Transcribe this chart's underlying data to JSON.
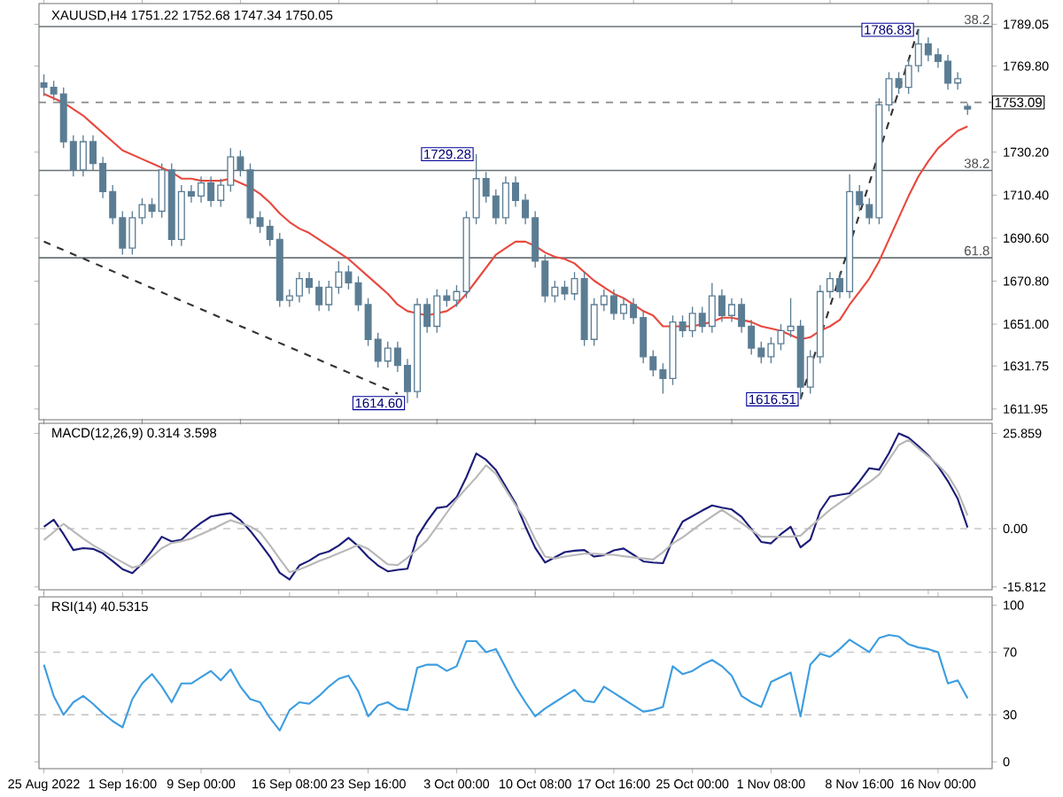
{
  "chart_data": [
    {
      "type": "candlestick",
      "title": "XAUUSD,H4  1751.22 1752.68 1747.34 1750.05",
      "color": "#5b7d94",
      "categories": [
        null,
        null,
        null,
        null,
        null,
        null,
        null,
        null,
        null,
        null,
        null,
        null,
        null,
        null,
        null,
        null,
        null,
        null,
        null,
        null,
        null,
        null,
        null,
        null,
        null,
        null,
        null,
        null,
        null,
        null,
        null,
        null,
        null,
        null,
        null,
        null,
        null,
        null,
        null,
        null,
        null,
        null,
        null,
        null,
        null,
        null,
        null,
        null,
        null,
        null,
        null,
        null,
        null,
        null,
        null,
        null,
        null,
        null,
        null,
        null,
        null,
        null,
        null,
        null,
        null,
        null,
        null,
        null,
        null,
        null,
        null,
        null,
        null,
        null,
        null,
        null,
        null,
        null,
        null,
        null,
        null,
        null,
        null,
        null,
        null,
        null,
        null,
        null,
        null,
        null,
        null,
        null,
        null,
        null,
        null
      ],
      "ohlc": [
        [
          1762,
          1766,
          1756,
          1760
        ],
        [
          1760,
          1763,
          1754,
          1757
        ],
        [
          1757,
          1760,
          1732,
          1735
        ],
        [
          1735,
          1738,
          1719,
          1722
        ],
        [
          1722,
          1738,
          1719,
          1735
        ],
        [
          1735,
          1738,
          1722,
          1725
        ],
        [
          1725,
          1728,
          1709,
          1712
        ],
        [
          1712,
          1715,
          1697,
          1700
        ],
        [
          1700,
          1703,
          1683,
          1686
        ],
        [
          1686,
          1703,
          1683,
          1700
        ],
        [
          1700,
          1709,
          1697,
          1706
        ],
        [
          1706,
          1709,
          1700,
          1703
        ],
        [
          1703,
          1725,
          1700,
          1722
        ],
        [
          1722,
          1725,
          1687,
          1690
        ],
        [
          1690,
          1715,
          1687,
          1712
        ],
        [
          1712,
          1715,
          1707,
          1710
        ],
        [
          1710,
          1719,
          1707,
          1716
        ],
        [
          1716,
          1719,
          1705,
          1708
        ],
        [
          1708,
          1718,
          1705,
          1715
        ],
        [
          1715,
          1732,
          1712,
          1728
        ],
        [
          1728,
          1731,
          1719,
          1722
        ],
        [
          1722,
          1725,
          1697,
          1700
        ],
        [
          1700,
          1703,
          1693,
          1696
        ],
        [
          1696,
          1699,
          1687,
          1690
        ],
        [
          1690,
          1693,
          1659,
          1662
        ],
        [
          1662,
          1667,
          1659,
          1664
        ],
        [
          1664,
          1675,
          1661,
          1672
        ],
        [
          1672,
          1675,
          1665,
          1668
        ],
        [
          1668,
          1671,
          1657,
          1660
        ],
        [
          1660,
          1671,
          1657,
          1668
        ],
        [
          1668,
          1680,
          1665,
          1675
        ],
        [
          1675,
          1678,
          1667,
          1670
        ],
        [
          1670,
          1673,
          1657,
          1660
        ],
        [
          1660,
          1663,
          1641,
          1644
        ],
        [
          1644,
          1647,
          1631,
          1634
        ],
        [
          1634,
          1643,
          1631,
          1640
        ],
        [
          1640,
          1643,
          1629,
          1632
        ],
        [
          1632,
          1635,
          1614.6,
          1620
        ],
        [
          1620,
          1663,
          1617,
          1660
        ],
        [
          1660,
          1663,
          1647,
          1650
        ],
        [
          1650,
          1667,
          1647,
          1664
        ],
        [
          1664,
          1667,
          1659,
          1662
        ],
        [
          1662,
          1669,
          1659,
          1666
        ],
        [
          1666,
          1703,
          1663,
          1700
        ],
        [
          1700,
          1729.28,
          1697,
          1718
        ],
        [
          1718,
          1721,
          1707,
          1710
        ],
        [
          1710,
          1713,
          1697,
          1700
        ],
        [
          1700,
          1719,
          1697,
          1716
        ],
        [
          1716,
          1719,
          1705,
          1708
        ],
        [
          1708,
          1711,
          1697,
          1700
        ],
        [
          1700,
          1703,
          1677,
          1680
        ],
        [
          1680,
          1683,
          1661,
          1664
        ],
        [
          1664,
          1671,
          1661,
          1668
        ],
        [
          1668,
          1671,
          1662,
          1665
        ],
        [
          1665,
          1675,
          1662,
          1672
        ],
        [
          1672,
          1675,
          1641,
          1644
        ],
        [
          1644,
          1663,
          1641,
          1660
        ],
        [
          1660,
          1667,
          1657,
          1664
        ],
        [
          1664,
          1667,
          1653,
          1656
        ],
        [
          1656,
          1663,
          1653,
          1660
        ],
        [
          1660,
          1663,
          1651,
          1654
        ],
        [
          1654,
          1657,
          1633,
          1636
        ],
        [
          1636,
          1639,
          1627,
          1630
        ],
        [
          1630,
          1633,
          1619,
          1626
        ],
        [
          1626,
          1655,
          1623,
          1652
        ],
        [
          1652,
          1655,
          1645,
          1648
        ],
        [
          1648,
          1659,
          1645,
          1656
        ],
        [
          1656,
          1659,
          1647,
          1650
        ],
        [
          1650,
          1670,
          1647,
          1664
        ],
        [
          1664,
          1667,
          1652,
          1655
        ],
        [
          1655,
          1663,
          1652,
          1660
        ],
        [
          1660,
          1663,
          1647,
          1650
        ],
        [
          1650,
          1653,
          1637,
          1640
        ],
        [
          1640,
          1643,
          1633,
          1636
        ],
        [
          1636,
          1645,
          1633,
          1642
        ],
        [
          1642,
          1651,
          1639,
          1648
        ],
        [
          1648,
          1663,
          1645,
          1650
        ],
        [
          1650,
          1653,
          1616.51,
          1622
        ],
        [
          1622,
          1639,
          1619,
          1636
        ],
        [
          1636,
          1669,
          1633,
          1666
        ],
        [
          1666,
          1675,
          1663,
          1672
        ],
        [
          1672,
          1675,
          1663,
          1666
        ],
        [
          1666,
          1720,
          1663,
          1712
        ],
        [
          1712,
          1715,
          1703,
          1706
        ],
        [
          1706,
          1709,
          1697,
          1700
        ],
        [
          1700,
          1755,
          1697,
          1752
        ],
        [
          1752,
          1767,
          1749,
          1764
        ],
        [
          1764,
          1767,
          1757,
          1760
        ],
        [
          1760,
          1773,
          1757,
          1770
        ],
        [
          1770,
          1786.83,
          1767,
          1780
        ],
        [
          1780,
          1783,
          1772,
          1775
        ],
        [
          1775,
          1778,
          1769,
          1772
        ],
        [
          1772,
          1775,
          1759,
          1762
        ],
        [
          1762,
          1767,
          1759,
          1764
        ],
        [
          1751.22,
          1752.68,
          1747.34,
          1750.05
        ]
      ],
      "series": [
        {
          "type": "line",
          "color": "#e8493e",
          "values": [
            1757,
            1755,
            1753,
            1750,
            1747,
            1743,
            1739,
            1735,
            1731,
            1729,
            1727,
            1725,
            1723,
            1721,
            1718,
            1718,
            1717,
            1717,
            1717,
            1718,
            1716,
            1714,
            1711,
            1707,
            1702,
            1698,
            1695,
            1693,
            1690,
            1687,
            1684,
            1681,
            1677,
            1673,
            1669,
            1665,
            1660,
            1657,
            1656,
            1655,
            1656,
            1657,
            1660,
            1665,
            1671,
            1677,
            1683,
            1686,
            1689,
            1689,
            1687,
            1684,
            1682,
            1681,
            1679,
            1675,
            1671,
            1668,
            1665,
            1663,
            1660,
            1657,
            1655,
            1650,
            1650,
            1650,
            1650,
            1651,
            1652,
            1654,
            1654,
            1653,
            1652,
            1650,
            1649,
            1648,
            1646,
            1644,
            1645,
            1648,
            1650,
            1653,
            1660,
            1666,
            1672,
            1680,
            1690,
            1700,
            1710,
            1719,
            1726,
            1732,
            1736,
            1740,
            1742
          ]
        },
        {
          "type": "line",
          "color": "#333333",
          "line_style": "dashed",
          "values": [
            1689,
            null,
            null,
            null,
            null,
            null,
            null,
            null,
            null,
            null,
            null,
            null,
            null,
            null,
            null,
            null,
            null,
            null,
            null,
            null,
            null,
            null,
            null,
            null,
            null,
            null,
            null,
            null,
            null,
            null,
            null,
            null,
            null,
            null,
            null,
            null,
            1619,
            null,
            null,
            null,
            null,
            null,
            null,
            null,
            null,
            null,
            null,
            null,
            null,
            null,
            null,
            null,
            null,
            null,
            null,
            null,
            null,
            null,
            null,
            null,
            null,
            null,
            null,
            null,
            null,
            null,
            null,
            null,
            null,
            null,
            null,
            null,
            null,
            null,
            null,
            null,
            null,
            null,
            null,
            null,
            null,
            null,
            null,
            null,
            null,
            null,
            null,
            null,
            null,
            null,
            null,
            null,
            null,
            null,
            null
          ]
        },
        {
          "type": "line",
          "color": "#333333",
          "line_style": "dashed",
          "values": [
            null,
            null,
            null,
            null,
            null,
            null,
            null,
            null,
            null,
            null,
            null,
            null,
            null,
            null,
            null,
            null,
            null,
            null,
            null,
            null,
            null,
            null,
            null,
            null,
            null,
            null,
            null,
            null,
            null,
            null,
            null,
            null,
            null,
            null,
            null,
            null,
            null,
            null,
            null,
            null,
            null,
            null,
            null,
            null,
            null,
            null,
            null,
            null,
            null,
            null,
            null,
            null,
            null,
            null,
            null,
            null,
            null,
            null,
            null,
            null,
            null,
            null,
            null,
            null,
            null,
            null,
            null,
            null,
            null,
            null,
            null,
            null,
            null,
            null,
            null,
            null,
            null,
            1616.51,
            null,
            null,
            null,
            null,
            null,
            null,
            null,
            null,
            null,
            null,
            null,
            1786.83,
            null,
            null,
            null,
            null,
            null
          ]
        }
      ],
      "ylim": [
        1607,
        1798.6
      ],
      "yticks": [
        1789.05,
        {
          "value": 1769.8,
          "label": "1769.80"
        },
        {
          "value": 1730.2,
          "label": "1730.20"
        },
        {
          "value": 1710.4,
          "label": "1710.40"
        },
        {
          "value": 1690.6,
          "label": "1690.60"
        },
        {
          "value": 1670.8,
          "label": "1670.80"
        },
        {
          "value": 1651,
          "label": "1651.00"
        },
        1631.75,
        1611.95
      ],
      "tick_labels": "y",
      "ref_lines": [
        {
          "axis": "y",
          "value": 1753.09,
          "label": "1753.09",
          "line_style": "dashed",
          "color": "#888888"
        },
        {
          "axis": "y",
          "value": 1788,
          "color": "#6a7378"
        },
        {
          "axis": "y",
          "value": 1721.77,
          "color": "#6a7378"
        },
        {
          "axis": "y",
          "value": 1681.57,
          "color": "#6a7378"
        }
      ],
      "annotations": [
        "1614.60",
        "1729.28",
        "1616.51",
        "1786.83",
        {
          "text": "38.2",
          "y": 1788
        },
        {
          "text": "38.2",
          "y": 1721.77
        },
        {
          "text": "61.8",
          "y": 1681.57
        }
      ]
    },
    {
      "type": "line",
      "title": "MACD(12,26,9) 0.314 3.598",
      "categories": [
        null,
        null,
        null,
        null,
        null,
        null,
        null,
        null,
        null,
        null,
        null,
        null,
        null,
        null,
        null,
        null,
        null,
        null,
        null,
        null,
        null,
        null,
        null,
        null,
        null,
        null,
        null,
        null,
        null,
        null,
        null,
        null,
        null,
        null,
        null,
        null,
        null,
        null,
        null,
        null,
        null,
        null,
        null,
        null,
        null,
        null,
        null,
        null,
        null,
        null,
        null,
        null,
        null,
        null,
        null,
        null,
        null,
        null,
        null,
        null,
        null,
        null,
        null,
        null,
        null,
        null,
        null,
        null,
        null,
        null,
        null,
        null,
        null,
        null,
        null,
        null,
        null,
        null,
        null,
        null,
        null,
        null,
        null,
        null,
        null,
        null,
        null,
        null,
        null,
        null,
        null,
        null,
        null,
        null,
        null
      ],
      "series": [
        {
          "color": "#1c1c7a",
          "values": [
            0.5,
            2.4,
            -1.5,
            -5.8,
            -5.3,
            -5.5,
            -6.7,
            -8.8,
            -11,
            -12.1,
            -9.5,
            -6,
            -2.2,
            -3.5,
            -3,
            -0.5,
            1.6,
            3.3,
            3.8,
            4.2,
            2.3,
            -0.6,
            -4,
            -7.6,
            -12,
            -13.8,
            -10,
            -8.7,
            -7,
            -6.2,
            -4.6,
            -2.5,
            -4.8,
            -7.7,
            -10,
            -11.6,
            -11.2,
            -10.9,
            -2.2,
            2,
            5.6,
            6,
            8.5,
            14,
            20.4,
            18.7,
            15.9,
            11.4,
            6.9,
            0.6,
            -5.2,
            -9.2,
            -7.8,
            -6.4,
            -6,
            -5.8,
            -7.6,
            -7.2,
            -5.9,
            -5.4,
            -7.1,
            -8.9,
            -9.2,
            -9.4,
            -3,
            1.9,
            3.4,
            4.9,
            6.3,
            5.7,
            5.2,
            3.2,
            -0.1,
            -3.6,
            -4,
            -1.5,
            0.5,
            -5.1,
            -3,
            4.8,
            8.7,
            9.2,
            9.6,
            12.8,
            16.4,
            16,
            20.5,
            25.86,
            24.7,
            22.4,
            19.9,
            16.9,
            12.9,
            8.1,
            0.314
          ]
        },
        {
          "color": "#b8b8b8",
          "values": [
            -3.1,
            -0.9,
            1.3,
            -0.7,
            -2.7,
            -4.5,
            -6,
            -7.6,
            -9.1,
            -10.6,
            -9.9,
            -7.6,
            -5.3,
            -3.9,
            -3.4,
            -2.7,
            -1.5,
            -0.3,
            1,
            2.3,
            1.4,
            0.6,
            -1,
            -4.5,
            -8.2,
            -11.8,
            -11.1,
            -10,
            -8.8,
            -7.8,
            -6.7,
            -5.6,
            -4.4,
            -5.5,
            -7.6,
            -9.7,
            -9.9,
            -7.9,
            -5.6,
            -3.1,
            0.6,
            4.3,
            8,
            11,
            13.9,
            17.2,
            14.9,
            10.6,
            6.4,
            2.6,
            -2.9,
            -7.6,
            -8.1,
            -7.6,
            -7.2,
            -6.8,
            -6.8,
            -7,
            -7.1,
            -7.5,
            -7.8,
            -8.1,
            -8.4,
            -6.4,
            -4,
            -2.4,
            -0.4,
            1.5,
            3.3,
            5.1,
            3.3,
            1.5,
            -0.4,
            -2.2,
            -2.2,
            -2.2,
            -2.2,
            -1.9,
            0.5,
            2.8,
            5.1,
            7,
            8.9,
            10.8,
            12.6,
            14.7,
            18.7,
            22.7,
            24.1,
            21.8,
            19.6,
            17.3,
            14.5,
            10.1,
            3.598
          ]
        }
      ],
      "ylim": [
        -16.6,
        28.6
      ],
      "yticks": [
        25.859,
        {
          "value": 0,
          "label": "0.00"
        },
        -15.812
      ],
      "tick_labels": "y",
      "ref_lines": [
        {
          "axis": "y",
          "value": 0,
          "line_style": "dashed",
          "color": "#c8c8c8"
        }
      ]
    },
    {
      "type": "line",
      "title": "RSI(14) 40.5315",
      "categories": [
        "25 Aug 2022",
        null,
        null,
        null,
        null,
        null,
        null,
        null,
        "1 Sep 16:00",
        null,
        null,
        null,
        null,
        null,
        null,
        null,
        "9 Sep 00:00",
        null,
        null,
        null,
        null,
        null,
        null,
        null,
        null,
        "16 Sep 08:00",
        null,
        null,
        null,
        null,
        null,
        null,
        null,
        "23 Sep 16:00",
        null,
        null,
        null,
        null,
        null,
        null,
        null,
        null,
        "3 Oct 00:00",
        null,
        null,
        null,
        null,
        null,
        null,
        null,
        "10 Oct 08:00",
        null,
        null,
        null,
        null,
        null,
        null,
        null,
        "17 Oct 16:00",
        null,
        null,
        null,
        null,
        null,
        null,
        null,
        "25 Oct 00:00",
        null,
        null,
        null,
        null,
        null,
        null,
        null,
        "1 Nov 08:00",
        null,
        null,
        null,
        null,
        null,
        null,
        null,
        null,
        "8 Nov 16:00",
        null,
        null,
        null,
        null,
        null,
        null,
        null,
        "16 Nov 00:00",
        null,
        null,
        null
      ],
      "series": [
        {
          "color": "#3d9de0",
          "values": [
            62,
            42,
            30,
            38,
            42,
            37,
            31,
            26,
            22,
            40,
            50,
            56,
            48,
            38,
            50,
            50,
            54,
            58,
            52,
            59,
            48,
            40,
            38,
            28,
            20,
            33,
            38,
            37,
            42,
            48,
            53,
            55,
            45,
            29,
            36,
            38,
            34,
            33,
            60,
            62,
            62,
            58,
            61,
            77,
            77,
            70,
            72,
            60,
            48,
            38,
            29,
            34,
            38,
            42,
            46,
            39,
            38,
            48,
            44,
            40,
            36,
            32,
            33,
            35,
            61,
            56,
            58,
            62,
            65,
            61,
            55,
            42,
            38,
            35,
            51,
            54,
            57,
            29,
            62,
            69,
            67,
            72,
            78,
            74,
            70,
            79,
            81,
            80,
            75,
            73,
            72,
            70,
            50,
            52,
            40.5315
          ]
        }
      ],
      "ylim": [
        -4.4,
        105.3
      ],
      "yticks": [
        100,
        70,
        30,
        0
      ],
      "ref_lines": [
        {
          "axis": "y",
          "value": 70,
          "line_style": "dashed",
          "color": "#c8c8c8"
        },
        {
          "axis": "y",
          "value": 30,
          "line_style": "dashed",
          "color": "#c8c8c8"
        }
      ]
    }
  ]
}
